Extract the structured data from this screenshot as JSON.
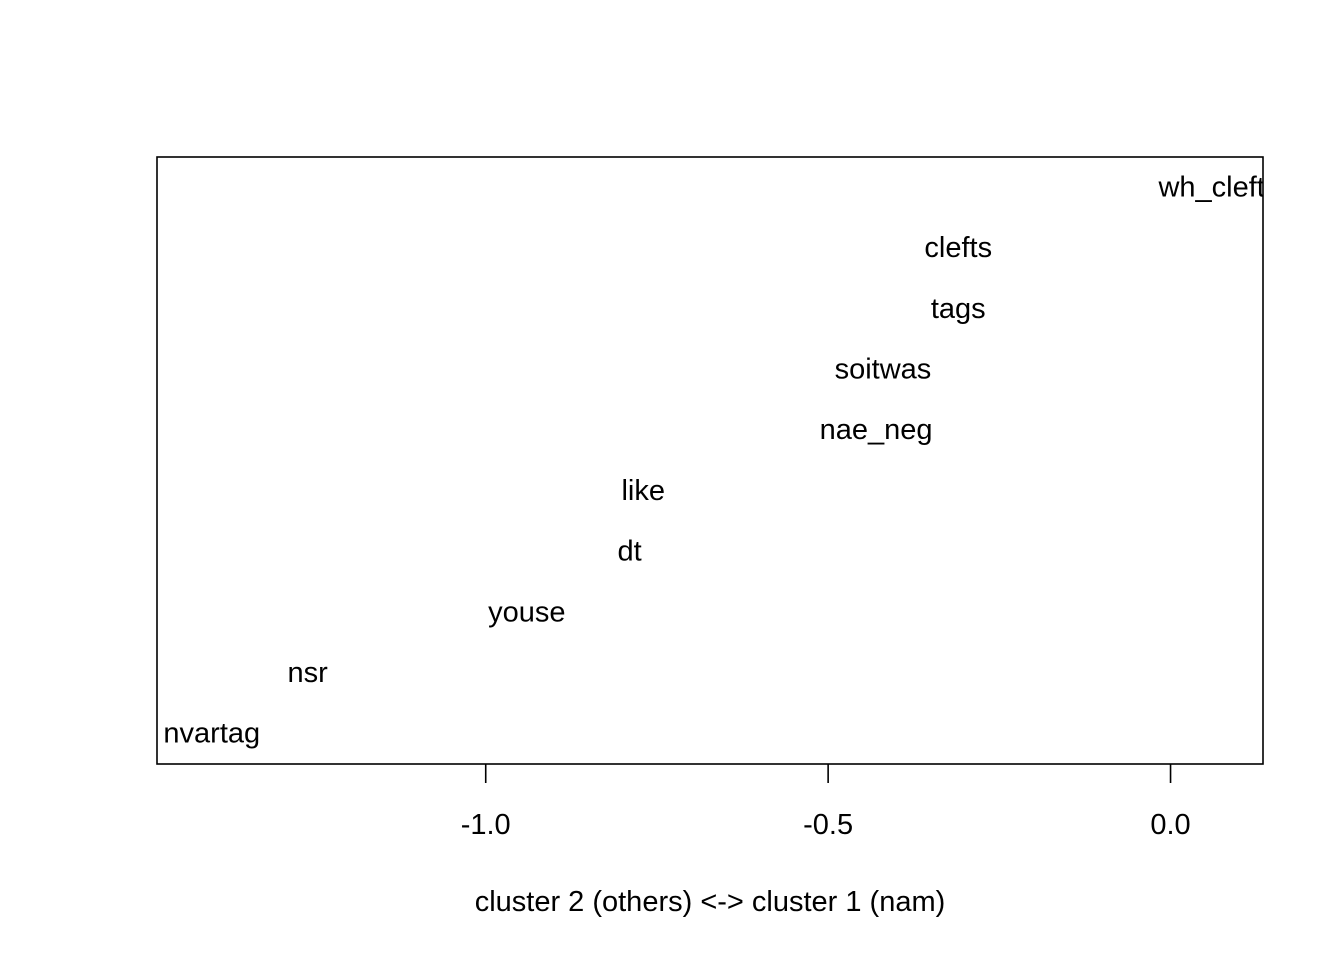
{
  "chart_data": {
    "type": "scatter",
    "title": "",
    "xlabel": "cluster 2 (others) <-> cluster 1 (nam)",
    "ylabel": "",
    "xlim": [
      -1.48,
      0.135
    ],
    "ylim": [
      0.5,
      10.5
    ],
    "x_ticks": [
      {
        "value": -1.0,
        "label": "-1.0"
      },
      {
        "value": -0.5,
        "label": "-0.5"
      },
      {
        "value": 0.0,
        "label": "0.0"
      }
    ],
    "grid": false,
    "legend": "none",
    "points": [
      {
        "label": "nvartag",
        "x": -1.4,
        "y": 1
      },
      {
        "label": "nsr",
        "x": -1.26,
        "y": 2
      },
      {
        "label": "youse",
        "x": -0.94,
        "y": 3
      },
      {
        "label": "dt",
        "x": -0.79,
        "y": 4
      },
      {
        "label": "like",
        "x": -0.77,
        "y": 5
      },
      {
        "label": "nae_neg",
        "x": -0.43,
        "y": 6
      },
      {
        "label": "soitwas",
        "x": -0.42,
        "y": 7
      },
      {
        "label": "tags",
        "x": -0.31,
        "y": 8
      },
      {
        "label": "clefts",
        "x": -0.31,
        "y": 9
      },
      {
        "label": "wh_cleft",
        "x": 0.06,
        "y": 10
      }
    ]
  }
}
